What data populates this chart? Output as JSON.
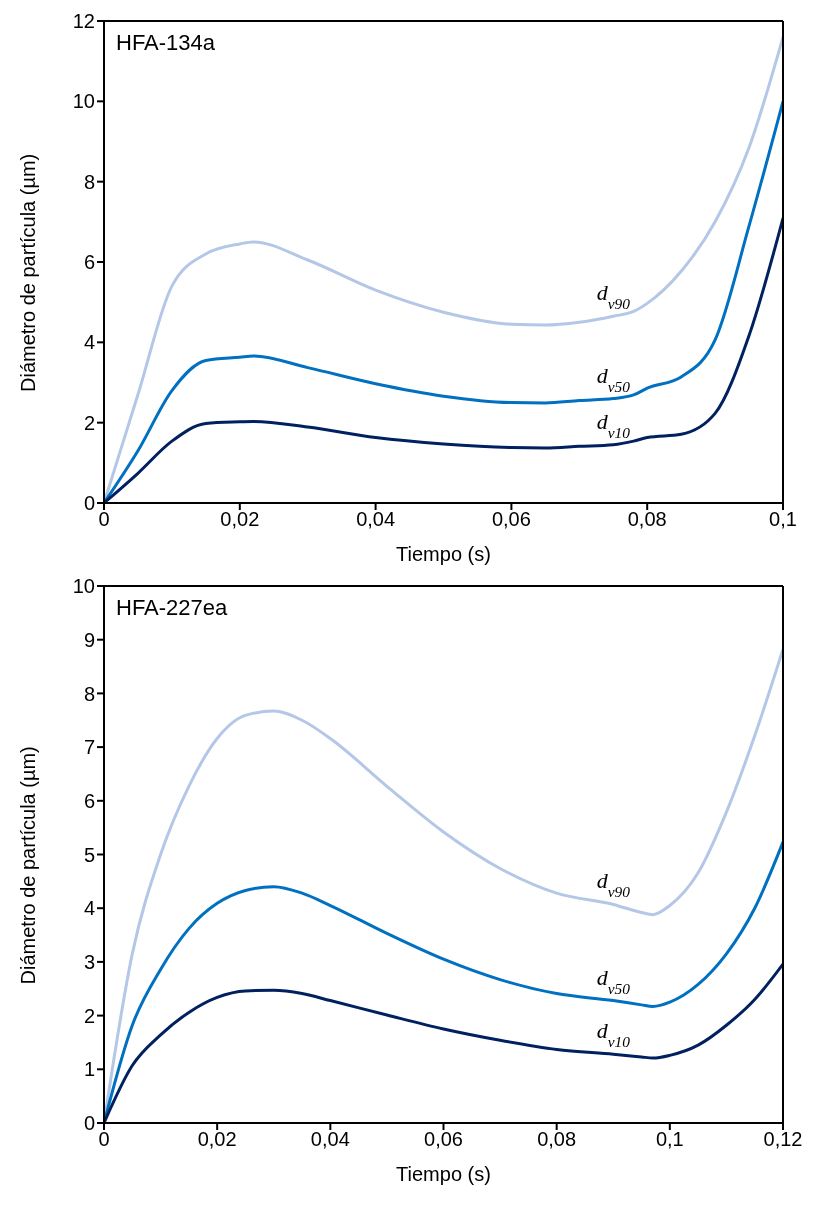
{
  "chart_data": [
    {
      "type": "line",
      "title": "HFA-134a",
      "xlabel": "Tiempo (s)",
      "ylabel": "Diámetro de partícula (µm)",
      "xlim": [
        0,
        0.1
      ],
      "xticks": [
        0,
        {
          "value": 0.02,
          "label": "0,02"
        },
        {
          "value": 0.04,
          "label": "0,04"
        },
        {
          "value": 0.06,
          "label": "0,06"
        },
        {
          "value": 0.08,
          "label": "0,08"
        },
        {
          "value": 0.1,
          "label": "0,1"
        }
      ],
      "ylim": [
        0,
        12
      ],
      "yticks": [
        0,
        2,
        4,
        6,
        8,
        10,
        12
      ],
      "legend": false,
      "marker": "none",
      "line_style": "solid",
      "x": [
        0,
        0.005,
        0.01,
        0.015,
        0.02,
        0.022,
        0.03,
        0.04,
        0.05,
        0.06,
        0.065,
        0.07,
        0.075,
        0.078,
        0.08,
        0.085,
        0.09,
        0.095,
        0.1
      ],
      "series": [
        {
          "name": "d$_{v90}$",
          "color": "#b4c7e7",
          "values": [
            0,
            2.7,
            5.4,
            6.2,
            6.45,
            6.5,
            6.05,
            5.3,
            4.75,
            4.45,
            4.43,
            4.5,
            4.65,
            4.77,
            4.97,
            5.77,
            7.0,
            8.85,
            11.6
          ]
        },
        {
          "name": "d$_{v50}$",
          "color": "#0070c0",
          "values": [
            0,
            1.3,
            2.8,
            3.55,
            3.63,
            3.66,
            3.37,
            2.97,
            2.66,
            2.5,
            2.49,
            2.55,
            2.6,
            2.69,
            2.86,
            3.14,
            4.06,
            6.9,
            10.0
          ]
        },
        {
          "name": "d$_{v10}$",
          "color": "#002060",
          "values": [
            0,
            0.74,
            1.54,
            1.98,
            2.02,
            2.03,
            1.89,
            1.63,
            1.47,
            1.38,
            1.37,
            1.41,
            1.45,
            1.54,
            1.63,
            1.71,
            2.23,
            4.17,
            7.09
          ]
        }
      ]
    },
    {
      "type": "line",
      "title": "HFA-227ea",
      "xlabel": "Tiempo (s)",
      "ylabel": "Diámetro de partícula (µm)",
      "xlim": [
        0,
        0.12
      ],
      "xticks": [
        0,
        {
          "value": 0.02,
          "label": "0,02"
        },
        {
          "value": 0.04,
          "label": "0,04"
        },
        {
          "value": 0.06,
          "label": "0,06"
        },
        {
          "value": 0.08,
          "label": "0,08"
        },
        {
          "value": 0.1,
          "label": "0,1"
        },
        {
          "value": 0.12,
          "label": "0,12"
        }
      ],
      "ylim": [
        0,
        10
      ],
      "yticks": [
        0,
        1,
        2,
        3,
        4,
        5,
        6,
        7,
        8,
        9,
        10
      ],
      "legend": false,
      "marker": "none",
      "line_style": "solid",
      "x": [
        0,
        0.005,
        0.01,
        0.015,
        0.02,
        0.025,
        0.03,
        0.035,
        0.04,
        0.05,
        0.06,
        0.07,
        0.08,
        0.09,
        0.095,
        0.097,
        0.1,
        0.105,
        0.11,
        0.115,
        0.12
      ],
      "series": [
        {
          "name": "d$_{v90}$",
          "color": "#b4c7e7",
          "values": [
            0,
            3.15,
            5.0,
            6.27,
            7.16,
            7.59,
            7.67,
            7.5,
            7.16,
            6.27,
            5.42,
            4.74,
            4.28,
            4.07,
            3.92,
            3.88,
            4.05,
            4.66,
            5.79,
            7.21,
            8.82
          ]
        },
        {
          "name": "d$_{v50}$",
          "color": "#0070c0",
          "values": [
            0,
            1.82,
            2.86,
            3.62,
            4.09,
            4.33,
            4.4,
            4.28,
            4.05,
            3.53,
            3.05,
            2.67,
            2.41,
            2.28,
            2.2,
            2.17,
            2.25,
            2.58,
            3.15,
            4.0,
            5.23
          ]
        },
        {
          "name": "d$_{v10}$",
          "color": "#002060",
          "values": [
            0,
            1.07,
            1.64,
            2.06,
            2.34,
            2.46,
            2.47,
            2.41,
            2.28,
            2.01,
            1.75,
            1.54,
            1.37,
            1.28,
            1.23,
            1.21,
            1.26,
            1.45,
            1.82,
            2.3,
            2.96
          ]
        }
      ]
    }
  ]
}
